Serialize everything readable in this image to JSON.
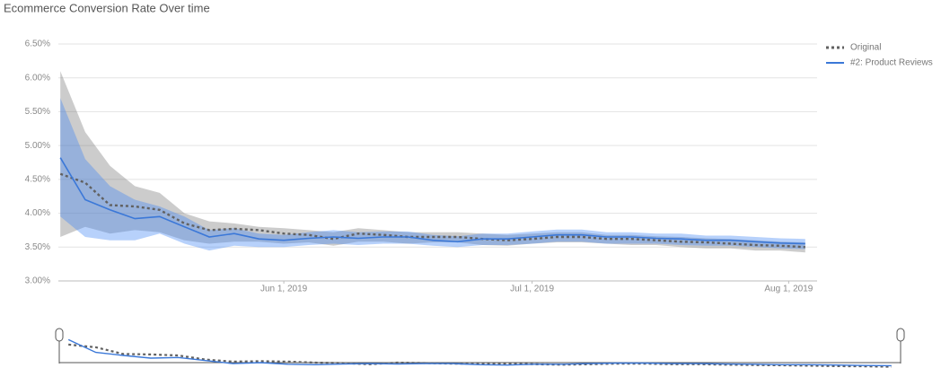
{
  "chart_data": {
    "type": "line",
    "title": "Ecommerce Conversion Rate Over time",
    "x": [
      "2019-05-05",
      "2019-05-08",
      "2019-05-11",
      "2019-05-14",
      "2019-05-17",
      "2019-05-20",
      "2019-05-23",
      "2019-05-26",
      "2019-05-29",
      "2019-06-01",
      "2019-06-04",
      "2019-06-07",
      "2019-06-10",
      "2019-06-13",
      "2019-06-16",
      "2019-06-19",
      "2019-06-22",
      "2019-06-25",
      "2019-06-28",
      "2019-07-01",
      "2019-07-04",
      "2019-07-07",
      "2019-07-10",
      "2019-07-13",
      "2019-07-16",
      "2019-07-19",
      "2019-07-22",
      "2019-07-25",
      "2019-07-28",
      "2019-07-31",
      "2019-08-03"
    ],
    "xlim": [
      "2019-05-04",
      "2019-08-04"
    ],
    "xticks": [
      {
        "value": "2019-06-01",
        "label": "Jun 1, 2019"
      },
      {
        "value": "2019-07-01",
        "label": "Jul 1, 2019"
      },
      {
        "value": "2019-08-01",
        "label": "Aug 1, 2019"
      }
    ],
    "ylim": [
      3,
      6.5
    ],
    "yticks": [
      {
        "value": 3,
        "label": "3.00%"
      },
      {
        "value": 3.5,
        "label": "3.50%"
      },
      {
        "value": 4,
        "label": "4.00%"
      },
      {
        "value": 4.5,
        "label": "4.50%"
      },
      {
        "value": 5,
        "label": "5.00%"
      },
      {
        "value": 5.5,
        "label": "5.50%"
      },
      {
        "value": 6,
        "label": "6.00%"
      },
      {
        "value": 6.5,
        "label": "6.50%"
      }
    ],
    "grid": true,
    "legend": "top-right",
    "series": [
      {
        "name": "Original",
        "color": "#616161",
        "dash": true,
        "band_color": "rgba(110,110,110,0.35)",
        "values": [
          4.58,
          4.45,
          4.12,
          4.1,
          4.05,
          3.85,
          3.75,
          3.77,
          3.75,
          3.7,
          3.68,
          3.62,
          3.7,
          3.68,
          3.65,
          3.65,
          3.65,
          3.62,
          3.6,
          3.62,
          3.65,
          3.65,
          3.62,
          3.62,
          3.6,
          3.58,
          3.57,
          3.55,
          3.53,
          3.52,
          3.5
        ],
        "upper": [
          6.1,
          5.2,
          4.7,
          4.4,
          4.3,
          4.0,
          3.88,
          3.85,
          3.8,
          3.78,
          3.75,
          3.72,
          3.78,
          3.75,
          3.72,
          3.72,
          3.72,
          3.7,
          3.68,
          3.7,
          3.72,
          3.72,
          3.68,
          3.68,
          3.66,
          3.65,
          3.63,
          3.62,
          3.6,
          3.58,
          3.57
        ],
        "lower": [
          3.65,
          3.8,
          3.7,
          3.75,
          3.72,
          3.6,
          3.55,
          3.58,
          3.58,
          3.55,
          3.57,
          3.52,
          3.58,
          3.58,
          3.55,
          3.57,
          3.57,
          3.53,
          3.52,
          3.55,
          3.57,
          3.57,
          3.55,
          3.53,
          3.53,
          3.5,
          3.48,
          3.48,
          3.45,
          3.45,
          3.42
        ]
      },
      {
        "name": "#2: Product Reviews",
        "color": "#3b78d8",
        "dash": false,
        "band_color": "rgba(66,133,244,0.38)",
        "values": [
          4.82,
          4.2,
          4.05,
          3.92,
          3.95,
          3.8,
          3.65,
          3.7,
          3.62,
          3.6,
          3.63,
          3.65,
          3.63,
          3.65,
          3.65,
          3.6,
          3.58,
          3.62,
          3.62,
          3.65,
          3.68,
          3.68,
          3.65,
          3.65,
          3.63,
          3.62,
          3.6,
          3.6,
          3.58,
          3.56,
          3.55
        ],
        "upper": [
          5.7,
          4.8,
          4.4,
          4.2,
          4.1,
          3.95,
          3.75,
          3.78,
          3.7,
          3.68,
          3.72,
          3.75,
          3.72,
          3.73,
          3.73,
          3.68,
          3.66,
          3.7,
          3.7,
          3.73,
          3.76,
          3.76,
          3.72,
          3.72,
          3.7,
          3.7,
          3.67,
          3.67,
          3.65,
          3.63,
          3.62
        ],
        "lower": [
          3.95,
          3.65,
          3.6,
          3.6,
          3.7,
          3.55,
          3.45,
          3.52,
          3.5,
          3.5,
          3.53,
          3.55,
          3.53,
          3.55,
          3.55,
          3.52,
          3.5,
          3.53,
          3.53,
          3.55,
          3.58,
          3.58,
          3.55,
          3.55,
          3.55,
          3.53,
          3.52,
          3.52,
          3.5,
          3.48,
          3.47
        ]
      }
    ]
  }
}
